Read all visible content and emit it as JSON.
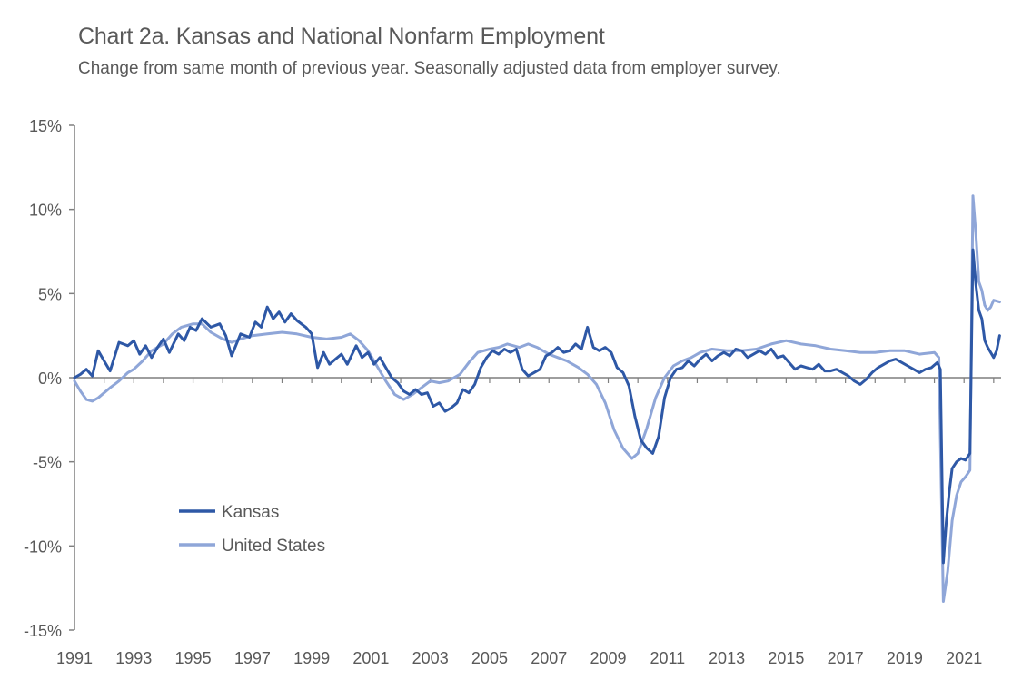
{
  "chart_data": {
    "type": "line",
    "title": "Chart 2a. Kansas and National Nonfarm Employment",
    "subtitle": "Change from same month of previous year. Seasonally adjusted data from employer survey.",
    "xlabel": "",
    "ylabel": "",
    "xlim": [
      1991,
      2022.25
    ],
    "ylim": [
      -15,
      15
    ],
    "x_ticks": [
      "1991",
      "1993",
      "1995",
      "1997",
      "1999",
      "2001",
      "2003",
      "2005",
      "2007",
      "2009",
      "2011",
      "2013",
      "2015",
      "2017",
      "2019",
      "2021"
    ],
    "y_ticks": [
      "15%",
      "10%",
      "5%",
      "0%",
      "-5%",
      "-10%",
      "-15%"
    ],
    "grid": false,
    "legend_position": "lower-left",
    "series": [
      {
        "name": "Kansas",
        "color": "#2e58a6",
        "points": [
          [
            1991.0,
            0.0
          ],
          [
            1991.2,
            0.2
          ],
          [
            1991.4,
            0.5
          ],
          [
            1991.6,
            0.1
          ],
          [
            1991.8,
            1.6
          ],
          [
            1992.0,
            1.0
          ],
          [
            1992.2,
            0.4
          ],
          [
            1992.5,
            2.1
          ],
          [
            1992.8,
            1.9
          ],
          [
            1993.0,
            2.2
          ],
          [
            1993.2,
            1.4
          ],
          [
            1993.4,
            1.9
          ],
          [
            1993.6,
            1.2
          ],
          [
            1993.8,
            1.8
          ],
          [
            1994.0,
            2.3
          ],
          [
            1994.2,
            1.5
          ],
          [
            1994.5,
            2.6
          ],
          [
            1994.7,
            2.2
          ],
          [
            1994.9,
            3.0
          ],
          [
            1995.1,
            2.8
          ],
          [
            1995.3,
            3.5
          ],
          [
            1995.6,
            3.0
          ],
          [
            1995.9,
            3.2
          ],
          [
            1996.1,
            2.5
          ],
          [
            1996.3,
            1.3
          ],
          [
            1996.6,
            2.6
          ],
          [
            1996.9,
            2.4
          ],
          [
            1997.1,
            3.3
          ],
          [
            1997.3,
            3.0
          ],
          [
            1997.5,
            4.2
          ],
          [
            1997.7,
            3.5
          ],
          [
            1997.9,
            3.9
          ],
          [
            1998.1,
            3.3
          ],
          [
            1998.3,
            3.8
          ],
          [
            1998.5,
            3.4
          ],
          [
            1998.8,
            3.0
          ],
          [
            1999.0,
            2.6
          ],
          [
            1999.2,
            0.6
          ],
          [
            1999.4,
            1.5
          ],
          [
            1999.6,
            0.8
          ],
          [
            1999.8,
            1.1
          ],
          [
            2000.0,
            1.4
          ],
          [
            2000.2,
            0.8
          ],
          [
            2000.5,
            1.9
          ],
          [
            2000.7,
            1.2
          ],
          [
            2000.9,
            1.5
          ],
          [
            2001.1,
            0.8
          ],
          [
            2001.3,
            1.2
          ],
          [
            2001.5,
            0.6
          ],
          [
            2001.7,
            0.0
          ],
          [
            2001.9,
            -0.3
          ],
          [
            2002.1,
            -0.8
          ],
          [
            2002.3,
            -1.0
          ],
          [
            2002.5,
            -0.7
          ],
          [
            2002.7,
            -1.0
          ],
          [
            2002.9,
            -0.9
          ],
          [
            2003.1,
            -1.7
          ],
          [
            2003.3,
            -1.5
          ],
          [
            2003.5,
            -2.0
          ],
          [
            2003.7,
            -1.8
          ],
          [
            2003.9,
            -1.5
          ],
          [
            2004.1,
            -0.7
          ],
          [
            2004.3,
            -0.9
          ],
          [
            2004.5,
            -0.4
          ],
          [
            2004.7,
            0.6
          ],
          [
            2004.9,
            1.2
          ],
          [
            2005.1,
            1.6
          ],
          [
            2005.3,
            1.4
          ],
          [
            2005.5,
            1.7
          ],
          [
            2005.7,
            1.5
          ],
          [
            2005.9,
            1.7
          ],
          [
            2006.1,
            0.5
          ],
          [
            2006.3,
            0.1
          ],
          [
            2006.5,
            0.3
          ],
          [
            2006.7,
            0.5
          ],
          [
            2006.9,
            1.3
          ],
          [
            2007.1,
            1.5
          ],
          [
            2007.3,
            1.8
          ],
          [
            2007.5,
            1.5
          ],
          [
            2007.7,
            1.6
          ],
          [
            2007.9,
            2.0
          ],
          [
            2008.1,
            1.7
          ],
          [
            2008.3,
            3.0
          ],
          [
            2008.5,
            1.8
          ],
          [
            2008.7,
            1.6
          ],
          [
            2008.9,
            1.8
          ],
          [
            2009.1,
            1.5
          ],
          [
            2009.3,
            0.6
          ],
          [
            2009.5,
            0.3
          ],
          [
            2009.7,
            -0.5
          ],
          [
            2009.9,
            -2.3
          ],
          [
            2010.1,
            -3.7
          ],
          [
            2010.3,
            -4.2
          ],
          [
            2010.5,
            -4.5
          ],
          [
            2010.7,
            -3.5
          ],
          [
            2010.9,
            -1.2
          ],
          [
            2011.1,
            0.0
          ],
          [
            2011.3,
            0.5
          ],
          [
            2011.5,
            0.6
          ],
          [
            2011.7,
            1.0
          ],
          [
            2011.9,
            0.7
          ],
          [
            2012.1,
            1.1
          ],
          [
            2012.3,
            1.4
          ],
          [
            2012.5,
            1.0
          ],
          [
            2012.7,
            1.3
          ],
          [
            2012.9,
            1.5
          ],
          [
            2013.1,
            1.3
          ],
          [
            2013.3,
            1.7
          ],
          [
            2013.5,
            1.6
          ],
          [
            2013.7,
            1.2
          ],
          [
            2013.9,
            1.4
          ],
          [
            2014.1,
            1.6
          ],
          [
            2014.3,
            1.4
          ],
          [
            2014.5,
            1.7
          ],
          [
            2014.7,
            1.2
          ],
          [
            2014.9,
            1.3
          ],
          [
            2015.1,
            0.9
          ],
          [
            2015.3,
            0.5
          ],
          [
            2015.5,
            0.7
          ],
          [
            2015.7,
            0.6
          ],
          [
            2015.9,
            0.5
          ],
          [
            2016.1,
            0.8
          ],
          [
            2016.3,
            0.4
          ],
          [
            2016.5,
            0.4
          ],
          [
            2016.7,
            0.5
          ],
          [
            2016.9,
            0.3
          ],
          [
            2017.1,
            0.1
          ],
          [
            2017.3,
            -0.2
          ],
          [
            2017.5,
            -0.4
          ],
          [
            2017.7,
            -0.1
          ],
          [
            2017.9,
            0.3
          ],
          [
            2018.1,
            0.6
          ],
          [
            2018.3,
            0.8
          ],
          [
            2018.5,
            1.0
          ],
          [
            2018.7,
            1.1
          ],
          [
            2018.9,
            0.9
          ],
          [
            2019.1,
            0.7
          ],
          [
            2019.3,
            0.5
          ],
          [
            2019.5,
            0.3
          ],
          [
            2019.7,
            0.5
          ],
          [
            2019.9,
            0.6
          ],
          [
            2020.1,
            0.9
          ],
          [
            2020.2,
            0.5
          ],
          [
            2020.3,
            -11.0
          ],
          [
            2020.4,
            -8.6
          ],
          [
            2020.5,
            -6.8
          ],
          [
            2020.6,
            -5.4
          ],
          [
            2020.75,
            -5.0
          ],
          [
            2020.9,
            -4.8
          ],
          [
            2021.05,
            -4.9
          ],
          [
            2021.2,
            -4.5
          ],
          [
            2021.3,
            7.6
          ],
          [
            2021.4,
            5.5
          ],
          [
            2021.5,
            4.0
          ],
          [
            2021.6,
            3.5
          ],
          [
            2021.7,
            2.2
          ],
          [
            2021.8,
            1.8
          ],
          [
            2021.9,
            1.5
          ],
          [
            2022.0,
            1.2
          ],
          [
            2022.1,
            1.6
          ],
          [
            2022.2,
            2.5
          ]
        ]
      },
      {
        "name": "United States",
        "color": "#8fa6d8",
        "points": [
          [
            1991.0,
            -0.2
          ],
          [
            1991.2,
            -0.8
          ],
          [
            1991.4,
            -1.3
          ],
          [
            1991.6,
            -1.4
          ],
          [
            1991.8,
            -1.2
          ],
          [
            1992.0,
            -0.9
          ],
          [
            1992.2,
            -0.6
          ],
          [
            1992.5,
            -0.2
          ],
          [
            1992.8,
            0.3
          ],
          [
            1993.0,
            0.5
          ],
          [
            1993.3,
            1.0
          ],
          [
            1993.6,
            1.6
          ],
          [
            1994.0,
            2.0
          ],
          [
            1994.3,
            2.6
          ],
          [
            1994.6,
            3.0
          ],
          [
            1995.0,
            3.2
          ],
          [
            1995.3,
            3.2
          ],
          [
            1995.6,
            2.7
          ],
          [
            1996.0,
            2.3
          ],
          [
            1996.3,
            2.1
          ],
          [
            1996.6,
            2.3
          ],
          [
            1997.0,
            2.5
          ],
          [
            1997.5,
            2.6
          ],
          [
            1998.0,
            2.7
          ],
          [
            1998.5,
            2.6
          ],
          [
            1999.0,
            2.4
          ],
          [
            1999.5,
            2.3
          ],
          [
            2000.0,
            2.4
          ],
          [
            2000.3,
            2.6
          ],
          [
            2000.6,
            2.2
          ],
          [
            2000.9,
            1.6
          ],
          [
            2001.2,
            0.7
          ],
          [
            2001.5,
            -0.2
          ],
          [
            2001.8,
            -1.0
          ],
          [
            2002.1,
            -1.3
          ],
          [
            2002.4,
            -1.0
          ],
          [
            2002.7,
            -0.6
          ],
          [
            2003.0,
            -0.2
          ],
          [
            2003.3,
            -0.3
          ],
          [
            2003.6,
            -0.2
          ],
          [
            2004.0,
            0.2
          ],
          [
            2004.3,
            0.9
          ],
          [
            2004.6,
            1.5
          ],
          [
            2005.0,
            1.7
          ],
          [
            2005.3,
            1.8
          ],
          [
            2005.6,
            2.0
          ],
          [
            2006.0,
            1.8
          ],
          [
            2006.3,
            2.0
          ],
          [
            2006.6,
            1.8
          ],
          [
            2007.0,
            1.4
          ],
          [
            2007.3,
            1.2
          ],
          [
            2007.6,
            1.0
          ],
          [
            2008.0,
            0.6
          ],
          [
            2008.3,
            0.2
          ],
          [
            2008.6,
            -0.4
          ],
          [
            2008.9,
            -1.5
          ],
          [
            2009.2,
            -3.1
          ],
          [
            2009.5,
            -4.2
          ],
          [
            2009.8,
            -4.8
          ],
          [
            2010.0,
            -4.5
          ],
          [
            2010.3,
            -3.0
          ],
          [
            2010.6,
            -1.2
          ],
          [
            2010.9,
            0.0
          ],
          [
            2011.2,
            0.7
          ],
          [
            2011.5,
            1.0
          ],
          [
            2011.8,
            1.2
          ],
          [
            2012.1,
            1.5
          ],
          [
            2012.5,
            1.7
          ],
          [
            2013.0,
            1.6
          ],
          [
            2013.5,
            1.6
          ],
          [
            2014.0,
            1.7
          ],
          [
            2014.5,
            2.0
          ],
          [
            2015.0,
            2.2
          ],
          [
            2015.5,
            2.0
          ],
          [
            2016.0,
            1.9
          ],
          [
            2016.5,
            1.7
          ],
          [
            2017.0,
            1.6
          ],
          [
            2017.5,
            1.5
          ],
          [
            2018.0,
            1.5
          ],
          [
            2018.5,
            1.6
          ],
          [
            2019.0,
            1.6
          ],
          [
            2019.5,
            1.4
          ],
          [
            2020.0,
            1.5
          ],
          [
            2020.15,
            1.2
          ],
          [
            2020.3,
            -13.3
          ],
          [
            2020.45,
            -11.5
          ],
          [
            2020.6,
            -8.5
          ],
          [
            2020.75,
            -7.0
          ],
          [
            2020.9,
            -6.2
          ],
          [
            2021.05,
            -5.9
          ],
          [
            2021.2,
            -5.5
          ],
          [
            2021.3,
            10.8
          ],
          [
            2021.4,
            8.5
          ],
          [
            2021.5,
            5.7
          ],
          [
            2021.6,
            5.2
          ],
          [
            2021.7,
            4.3
          ],
          [
            2021.8,
            4.0
          ],
          [
            2021.9,
            4.2
          ],
          [
            2022.0,
            4.6
          ],
          [
            2022.2,
            4.5
          ]
        ]
      }
    ]
  }
}
